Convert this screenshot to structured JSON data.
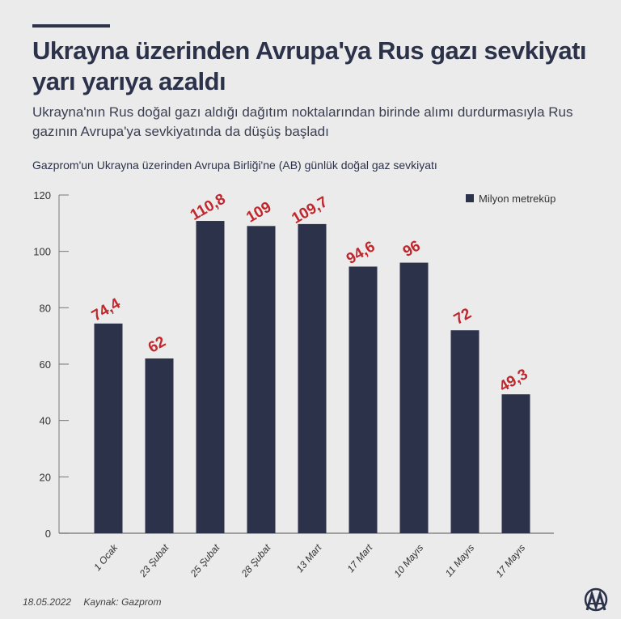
{
  "title": "Ukrayna üzerinden Avrupa'ya Rus gazı sevkiyatı yarı yarıya azaldı",
  "subtitle": "Ukrayna'nın Rus doğal gazı aldığı dağıtım noktalarından birinde alımı durdurmasıyla Rus gazının Avrupa'ya sevkiyatında da düşüş başladı",
  "footer": {
    "date": "18.05.2022",
    "source": "Kaynak: Gazprom",
    "logo_text": "AA"
  },
  "colors": {
    "bar": "#2b3249",
    "label": "#c0272d",
    "background": "#ebebec"
  },
  "chart_data": {
    "type": "bar",
    "title": "Gazprom'un Ukrayna üzerinden Avrupa Birliği'ne (AB) günlük doğal gaz sevkiyatı",
    "categories": [
      "1 Ocak",
      "23 Şubat",
      "25 Şubat",
      "28 Şubat",
      "13 Mart",
      "17 Mart",
      "10 Mayıs",
      "11 Mayıs",
      "17 Mayıs"
    ],
    "series": [
      {
        "name": "Milyon metreküp",
        "values": [
          74.4,
          62,
          110.8,
          109,
          109.7,
          94.6,
          96,
          72,
          49.3
        ]
      }
    ],
    "data_labels": [
      "74,4",
      "62",
      "110,8",
      "109",
      "109,7",
      "94,6",
      "96",
      "72",
      "49,3"
    ],
    "yticks": [
      0,
      20,
      40,
      60,
      80,
      100,
      120
    ],
    "ylim": [
      0,
      120
    ],
    "grid": false,
    "legend": "top-right"
  }
}
